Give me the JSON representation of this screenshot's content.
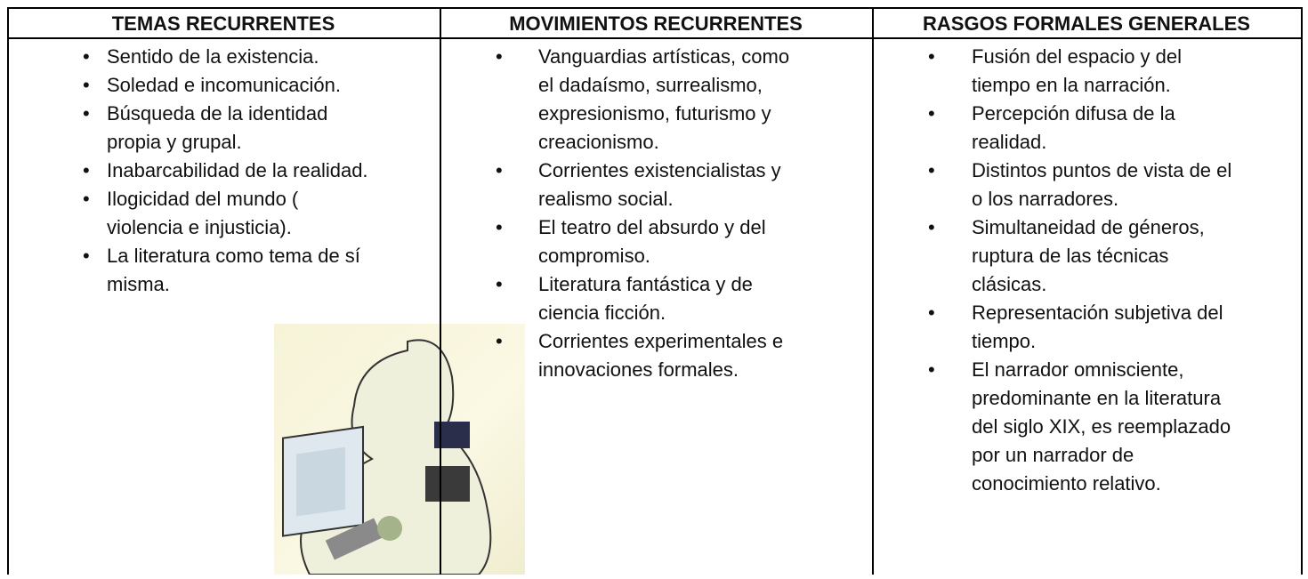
{
  "table": {
    "columns": [
      {
        "header": "TEMAS RECURRENTES",
        "items": [
          [
            "Sentido de la existencia."
          ],
          [
            "Soledad e incomunicación."
          ],
          [
            "Búsqueda de la identidad",
            "propia y grupal."
          ],
          [
            "Inabarcabilidad de la realidad."
          ],
          [
            "Ilogicidad del mundo (",
            "violencia e injusticia)."
          ],
          [
            "La literatura como tema de sí",
            "misma."
          ]
        ]
      },
      {
        "header": "MOVIMIENTOS RECURRENTES",
        "items": [
          [
            "Vanguardias artísticas, como",
            "el dadaísmo, surrealismo,",
            "expresionismo, futurismo y",
            "creacionismo."
          ],
          [
            "Corrientes existencialistas y",
            "realismo social."
          ],
          [
            "El teatro del absurdo y del",
            "compromiso."
          ],
          [
            "Literatura fantástica y de",
            "ciencia ficción."
          ],
          [
            "Corrientes experimentales e",
            "innovaciones formales."
          ]
        ]
      },
      {
        "header": "RASGOS FORMALES GENERALES",
        "items": [
          [
            "Fusión del espacio y del",
            "tiempo en la narración."
          ],
          [
            "Percepción difusa de la",
            "realidad."
          ],
          [
            "Distintos puntos de vista de el",
            "o los narradores."
          ],
          [
            "Simultaneidad de géneros,",
            "ruptura de las técnicas",
            "clásicas."
          ],
          [
            "Representación subjetiva del",
            "tiempo."
          ],
          [
            "El narrador omnisciente,",
            "predominante en la literatura",
            "del siglo XIX, es reemplazado",
            "por un narrador de",
            "conocimiento relativo."
          ]
        ]
      }
    ]
  }
}
